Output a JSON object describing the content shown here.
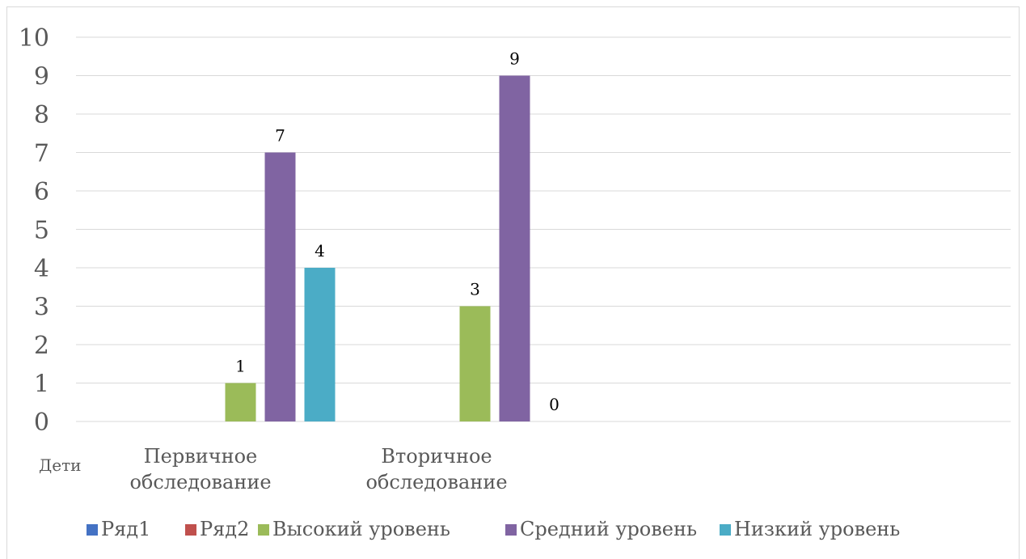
{
  "chart_data": {
    "type": "bar",
    "categories": [
      "Первичное обследование",
      "Вторичное обследование"
    ],
    "category_lines": [
      [
        "Первичное",
        "обследование"
      ],
      [
        "Вторичное",
        "обследование"
      ]
    ],
    "extra_x_label": "Дети",
    "series": [
      {
        "name": "Ряд1",
        "color": "#4472c4",
        "values": [
          null,
          null
        ]
      },
      {
        "name": "Ряд2",
        "color": "#c0504d",
        "values": [
          null,
          null
        ]
      },
      {
        "name": "Высокий уровень",
        "color": "#9bbb59",
        "values": [
          1,
          3
        ]
      },
      {
        "name": "Средний уровень",
        "color": "#8064a2",
        "values": [
          7,
          9
        ]
      },
      {
        "name": "Низкий уровень",
        "color": "#4bacc6",
        "values": [
          4,
          0
        ]
      }
    ],
    "ylim": [
      0,
      10
    ],
    "yticks": [
      "0",
      "1",
      "2",
      "3",
      "4",
      "5",
      "6",
      "7",
      "8",
      "9",
      "10"
    ],
    "data_labels": true,
    "grid": true,
    "legend_position": "bottom"
  }
}
